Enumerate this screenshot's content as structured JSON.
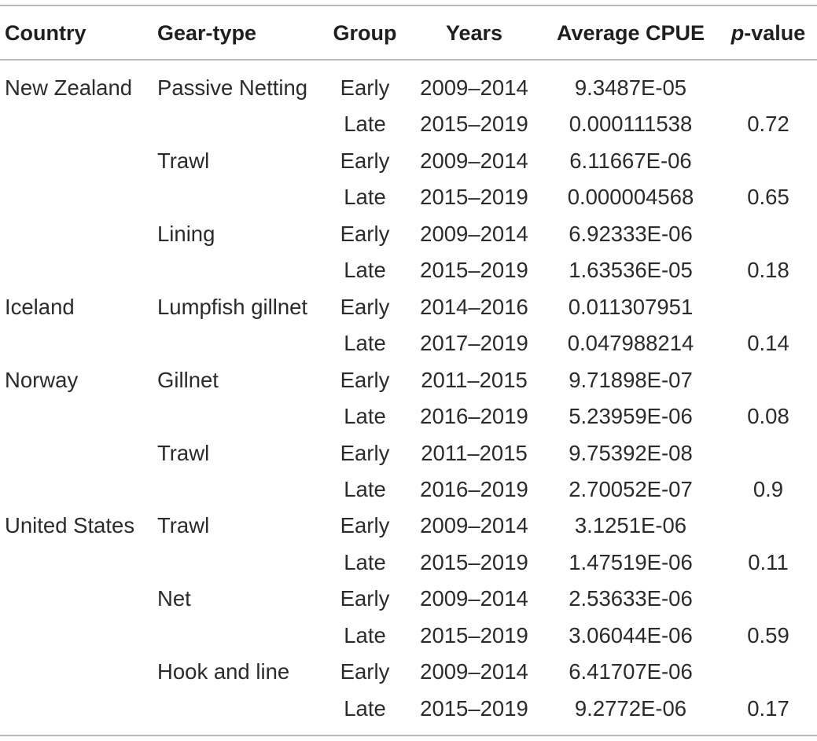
{
  "header": {
    "country": "Country",
    "gear_type": "Gear-type",
    "group": "Group",
    "years": "Years",
    "average_cpue": "Average CPUE",
    "p_italic": "p",
    "p_rest": "-value"
  },
  "rows": [
    {
      "country": "New Zealand",
      "gear": "Passive Netting",
      "group": "Early",
      "years": "2009–2014",
      "cpue": "9.3487E-05",
      "p": ""
    },
    {
      "country": "",
      "gear": "",
      "group": "Late",
      "years": "2015–2019",
      "cpue": "0.000111538",
      "p": "0.72"
    },
    {
      "country": "",
      "gear": "Trawl",
      "group": "Early",
      "years": "2009–2014",
      "cpue": "6.11667E-06",
      "p": ""
    },
    {
      "country": "",
      "gear": "",
      "group": "Late",
      "years": "2015–2019",
      "cpue": "0.000004568",
      "p": "0.65"
    },
    {
      "country": "",
      "gear": "Lining",
      "group": "Early",
      "years": "2009–2014",
      "cpue": "6.92333E-06",
      "p": ""
    },
    {
      "country": "",
      "gear": "",
      "group": "Late",
      "years": "2015–2019",
      "cpue": "1.63536E-05",
      "p": "0.18"
    },
    {
      "country": "Iceland",
      "gear": "Lumpfish gillnet",
      "group": "Early",
      "years": "2014–2016",
      "cpue": "0.011307951",
      "p": ""
    },
    {
      "country": "",
      "gear": "",
      "group": "Late",
      "years": "2017–2019",
      "cpue": "0.047988214",
      "p": "0.14"
    },
    {
      "country": "Norway",
      "gear": "Gillnet",
      "group": "Early",
      "years": "2011–2015",
      "cpue": "9.71898E-07",
      "p": ""
    },
    {
      "country": "",
      "gear": "",
      "group": "Late",
      "years": "2016–2019",
      "cpue": "5.23959E-06",
      "p": "0.08"
    },
    {
      "country": "",
      "gear": "Trawl",
      "group": "Early",
      "years": "2011–2015",
      "cpue": "9.75392E-08",
      "p": ""
    },
    {
      "country": "",
      "gear": "",
      "group": "Late",
      "years": "2016–2019",
      "cpue": "2.70052E-07",
      "p": "0.9"
    },
    {
      "country": "United States",
      "gear": "Trawl",
      "group": "Early",
      "years": "2009–2014",
      "cpue": "3.1251E-06",
      "p": ""
    },
    {
      "country": "",
      "gear": "",
      "group": "Late",
      "years": "2015–2019",
      "cpue": "1.47519E-06",
      "p": "0.11"
    },
    {
      "country": "",
      "gear": "Net",
      "group": "Early",
      "years": "2009–2014",
      "cpue": "2.53633E-06",
      "p": ""
    },
    {
      "country": "",
      "gear": "",
      "group": "Late",
      "years": "2015–2019",
      "cpue": "3.06044E-06",
      "p": "0.59"
    },
    {
      "country": "",
      "gear": "Hook and line",
      "group": "Early",
      "years": "2009–2014",
      "cpue": "6.41707E-06",
      "p": ""
    },
    {
      "country": "",
      "gear": "",
      "group": "Late",
      "years": "2015–2019",
      "cpue": "9.2772E-06",
      "p": "0.17"
    }
  ]
}
